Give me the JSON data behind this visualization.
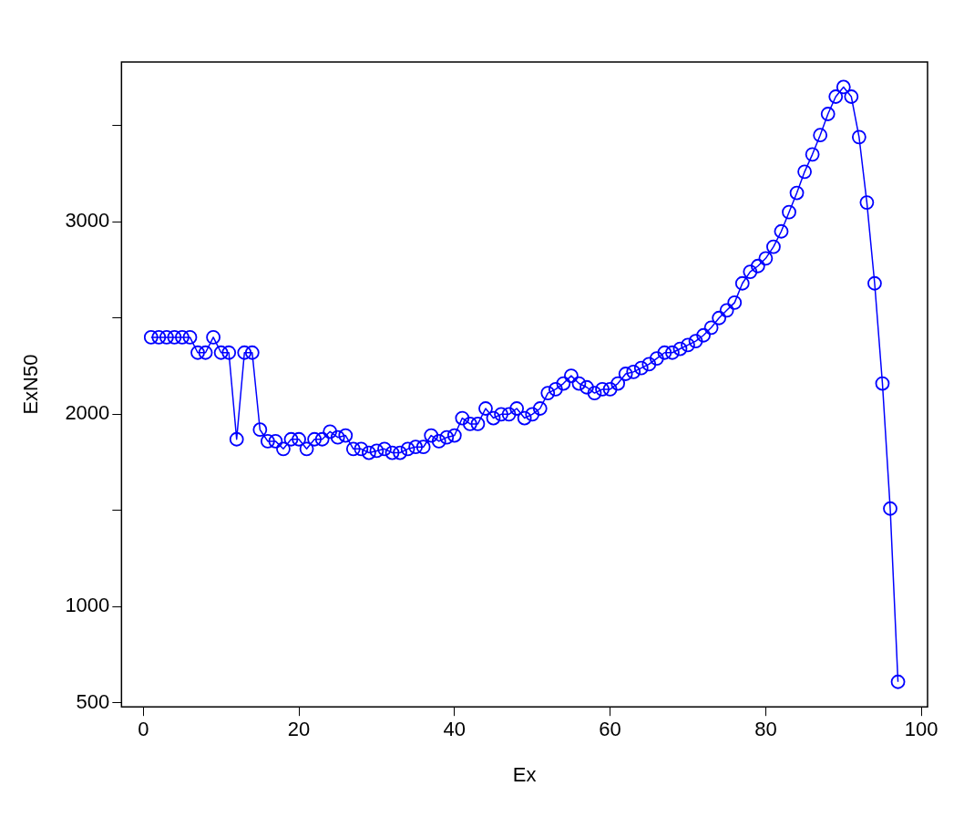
{
  "chart_data": {
    "type": "line",
    "xlabel": "Ex",
    "ylabel": "ExN50",
    "x": [
      1,
      2,
      3,
      4,
      5,
      6,
      7,
      8,
      9,
      10,
      11,
      12,
      13,
      14,
      15,
      16,
      17,
      18,
      19,
      20,
      21,
      22,
      23,
      24,
      25,
      26,
      27,
      28,
      29,
      30,
      31,
      32,
      33,
      34,
      35,
      36,
      37,
      38,
      39,
      40,
      41,
      42,
      43,
      44,
      45,
      46,
      47,
      48,
      49,
      50,
      51,
      52,
      53,
      54,
      55,
      56,
      57,
      58,
      59,
      60,
      61,
      62,
      63,
      64,
      65,
      66,
      67,
      68,
      69,
      70,
      71,
      72,
      73,
      74,
      75,
      76,
      77,
      78,
      79,
      80,
      81,
      82,
      83,
      84,
      85,
      86,
      87,
      88,
      89,
      90,
      91,
      92,
      93,
      94,
      95,
      96,
      97
    ],
    "series": [
      {
        "color": "#0000ff",
        "values": [
          2400,
          2400,
          2400,
          2400,
          2400,
          2400,
          2320,
          2320,
          2400,
          2320,
          2320,
          1870,
          2320,
          2320,
          1920,
          1860,
          1860,
          1820,
          1870,
          1870,
          1820,
          1870,
          1870,
          1910,
          1880,
          1890,
          1820,
          1820,
          1800,
          1810,
          1820,
          1800,
          1800,
          1820,
          1830,
          1830,
          1890,
          1860,
          1880,
          1890,
          1980,
          1950,
          1950,
          2030,
          1980,
          2000,
          2000,
          2030,
          1980,
          2000,
          2030,
          2110,
          2130,
          2160,
          2200,
          2160,
          2140,
          2110,
          2130,
          2130,
          2160,
          2210,
          2220,
          2240,
          2260,
          2290,
          2320,
          2320,
          2340,
          2360,
          2380,
          2410,
          2450,
          2500,
          2540,
          2580,
          2680,
          2740,
          2770,
          2810,
          2870,
          2950,
          3050,
          3150,
          3260,
          3350,
          3450,
          3560,
          3650,
          3700,
          3650,
          3440,
          3100,
          2680,
          2160,
          1510,
          610
        ]
      }
    ],
    "xlim": [
      -2.8,
      100.8
    ],
    "ylim": [
      480,
      3830
    ],
    "xticks": [
      0,
      20,
      40,
      60,
      80,
      100
    ],
    "yticks": [
      500,
      1000,
      {
        "value": 1500,
        "label": null
      },
      2000,
      {
        "value": 2500,
        "label": null
      },
      3000,
      {
        "value": 3500,
        "label": null
      }
    ],
    "marker": "circle",
    "line_style": "solid",
    "grid": false,
    "legend": false
  }
}
